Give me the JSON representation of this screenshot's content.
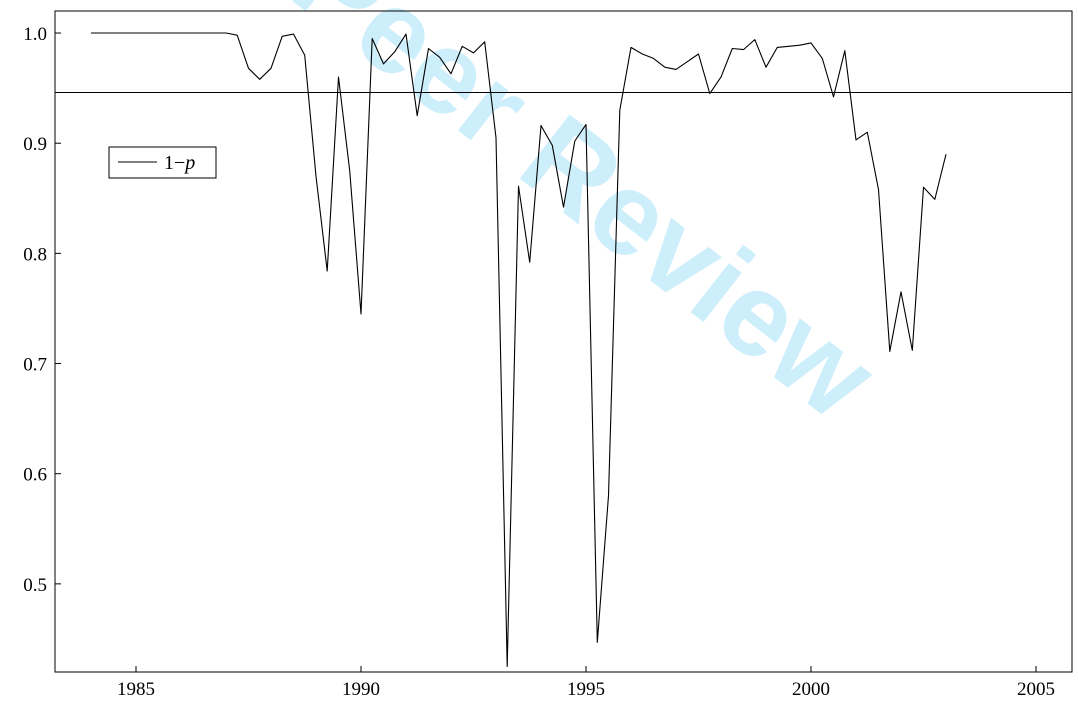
{
  "watermark": "Peer Review",
  "chart_data": {
    "type": "line",
    "title": "",
    "xlabel": "",
    "ylabel": "",
    "xlim": [
      1983.2,
      2005.8
    ],
    "ylim": [
      0.42,
      1.02
    ],
    "xticks": [
      1985,
      1990,
      1995,
      2000,
      2005
    ],
    "yticks": [
      0.5,
      0.6,
      0.7,
      0.8,
      0.9,
      1.0
    ],
    "ytick_labels": [
      "0.5",
      "0.6",
      "0.7",
      "0.8",
      "0.9",
      "1.0"
    ],
    "legend": {
      "position": "upper-left",
      "label_main": "1−",
      "label_italic": "p"
    },
    "reference_line": {
      "y": 0.946
    },
    "series": [
      {
        "name": "1−p",
        "color": "#000000",
        "x": [
          1984.0,
          1984.5,
          1985.0,
          1985.5,
          1986.0,
          1986.5,
          1987.0,
          1987.25,
          1987.5,
          1987.75,
          1988.0,
          1988.25,
          1988.5,
          1988.75,
          1989.0,
          1989.25,
          1989.5,
          1989.75,
          1990.0,
          1990.25,
          1990.5,
          1990.75,
          1991.0,
          1991.25,
          1991.5,
          1991.75,
          1992.0,
          1992.25,
          1992.5,
          1992.75,
          1993.0,
          1993.25,
          1993.5,
          1993.75,
          1994.0,
          1994.25,
          1994.5,
          1994.75,
          1995.0,
          1995.25,
          1995.5,
          1995.75,
          1996.0,
          1996.25,
          1996.5,
          1996.75,
          1997.0,
          1997.25,
          1997.5,
          1997.75,
          1998.0,
          1998.25,
          1998.5,
          1998.75,
          1999.0,
          1999.25,
          1999.5,
          1999.75,
          2000.0,
          2000.25,
          2000.5,
          2000.75,
          2001.0,
          2001.25,
          2001.5,
          2001.75,
          2002.0,
          2002.25,
          2002.5,
          2002.75,
          2003.0
        ],
        "y": [
          1.0,
          1.0,
          1.0,
          1.0,
          1.0,
          1.0,
          1.0,
          0.998,
          0.968,
          0.958,
          0.968,
          0.997,
          0.999,
          0.98,
          0.87,
          0.784,
          0.96,
          0.875,
          0.745,
          0.995,
          0.972,
          0.983,
          0.999,
          0.925,
          0.986,
          0.978,
          0.963,
          0.988,
          0.982,
          0.992,
          0.905,
          0.425,
          0.861,
          0.792,
          0.916,
          0.898,
          0.842,
          0.902,
          0.917,
          0.447,
          0.58,
          0.93,
          0.987,
          0.981,
          0.977,
          0.969,
          0.967,
          0.974,
          0.981,
          0.945,
          0.96,
          0.986,
          0.985,
          0.994,
          0.969,
          0.987,
          0.988,
          0.989,
          0.991,
          0.977,
          0.942,
          0.984,
          0.903,
          0.91,
          0.858,
          0.711,
          0.765,
          0.712,
          0.86,
          0.849,
          0.89
        ]
      }
    ]
  }
}
